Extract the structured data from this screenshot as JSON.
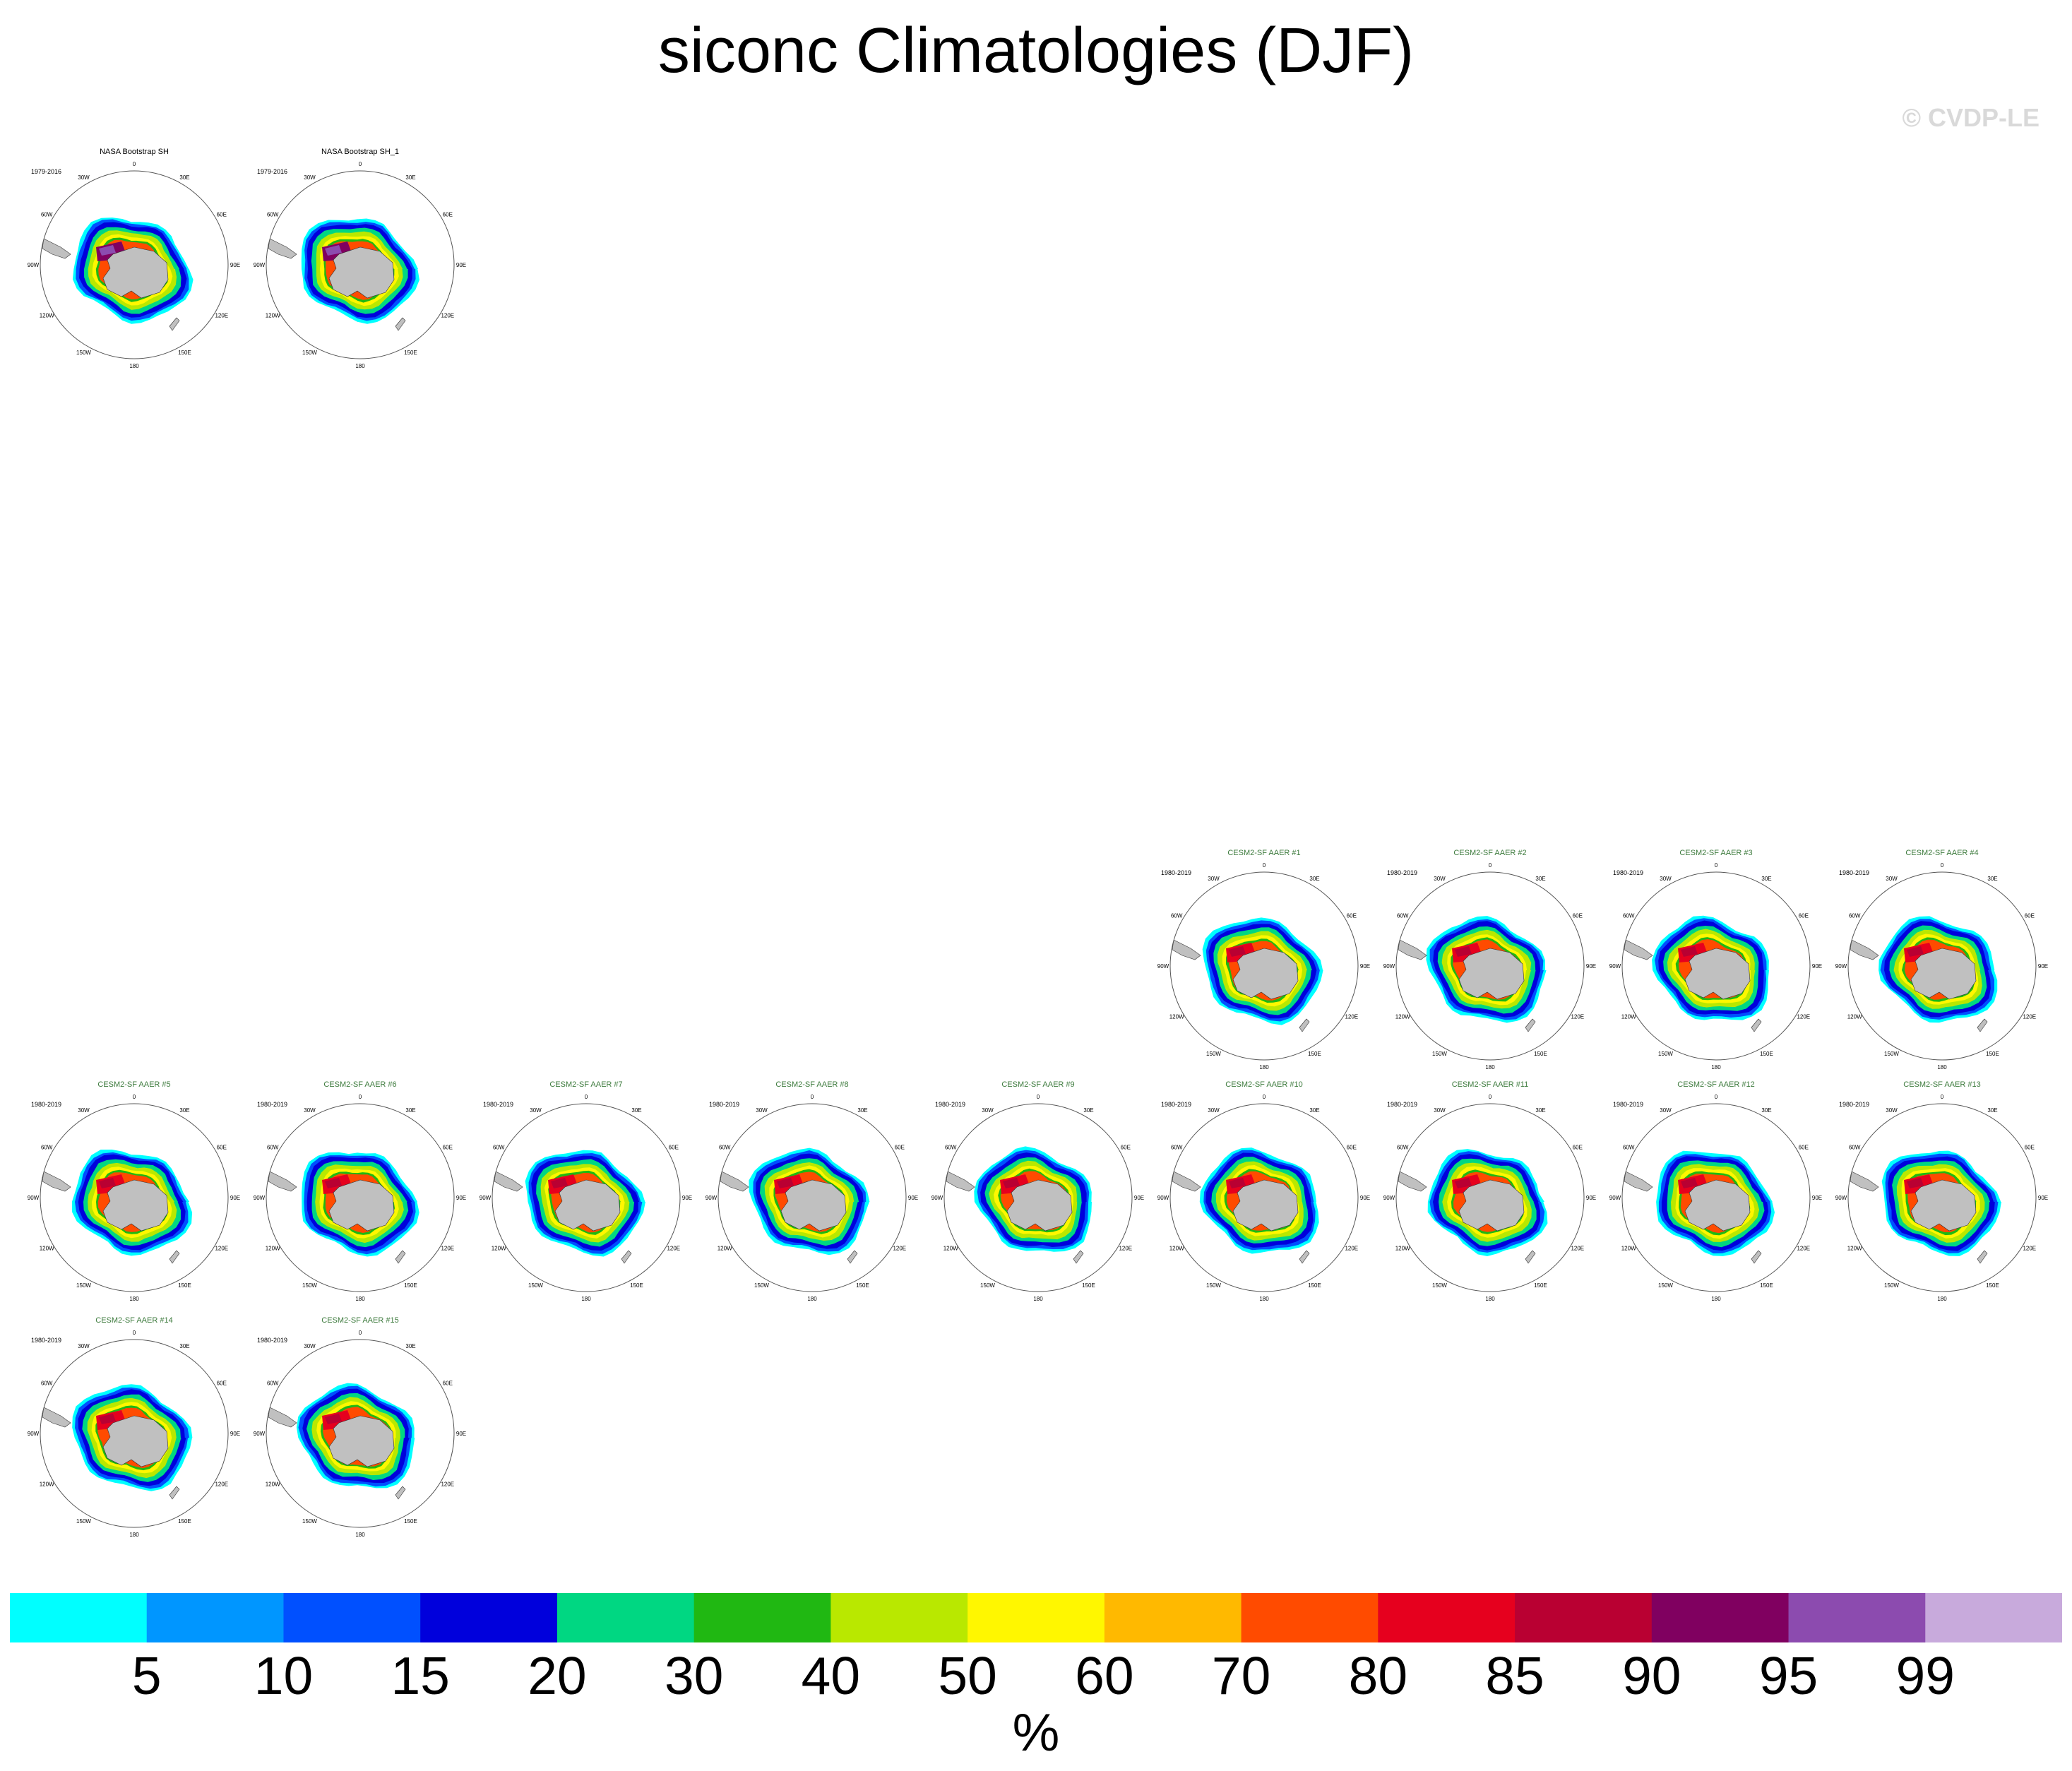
{
  "page": {
    "title": "siconc Climatologies (DJF)",
    "watermark": "© CVDP-LE"
  },
  "chart_data": {
    "type": "heatmap",
    "projection": "south polar stereographic",
    "variable": "siconc",
    "season": "DJF",
    "panels": [
      {
        "title": "NASA Bootstrap SH",
        "years": "1979-2016",
        "kind": "obs"
      },
      {
        "title": "NASA Bootstrap SH_1",
        "years": "1979-2016",
        "kind": "obs"
      },
      {
        "title": "CESM2-SF AAER #1",
        "years": "1980-2019",
        "kind": "model"
      },
      {
        "title": "CESM2-SF AAER #2",
        "years": "1980-2019",
        "kind": "model"
      },
      {
        "title": "CESM2-SF AAER #3",
        "years": "1980-2019",
        "kind": "model"
      },
      {
        "title": "CESM2-SF AAER #4",
        "years": "1980-2019",
        "kind": "model"
      },
      {
        "title": "CESM2-SF AAER #5",
        "years": "1980-2019",
        "kind": "model"
      },
      {
        "title": "CESM2-SF AAER #6",
        "years": "1980-2019",
        "kind": "model"
      },
      {
        "title": "CESM2-SF AAER #7",
        "years": "1980-2019",
        "kind": "model"
      },
      {
        "title": "CESM2-SF AAER #8",
        "years": "1980-2019",
        "kind": "model"
      },
      {
        "title": "CESM2-SF AAER #9",
        "years": "1980-2019",
        "kind": "model"
      },
      {
        "title": "CESM2-SF AAER #10",
        "years": "1980-2019",
        "kind": "model"
      },
      {
        "title": "CESM2-SF AAER #11",
        "years": "1980-2019",
        "kind": "model"
      },
      {
        "title": "CESM2-SF AAER #12",
        "years": "1980-2019",
        "kind": "model"
      },
      {
        "title": "CESM2-SF AAER #13",
        "years": "1980-2019",
        "kind": "model"
      },
      {
        "title": "CESM2-SF AAER #14",
        "years": "1980-2019",
        "kind": "model"
      },
      {
        "title": "CESM2-SF AAER #15",
        "years": "1980-2019",
        "kind": "model"
      }
    ],
    "longitude_labels": [
      "0",
      "30E",
      "60E",
      "90E",
      "120E",
      "150E",
      "180",
      "150W",
      "120W",
      "90W",
      "60W",
      "30W"
    ],
    "colorbar": {
      "units": "%",
      "levels": [
        "5",
        "10",
        "15",
        "20",
        "30",
        "40",
        "50",
        "60",
        "70",
        "80",
        "85",
        "90",
        "95",
        "99"
      ],
      "colors": [
        "#00ffff",
        "#0096ff",
        "#0050ff",
        "#0000dc",
        "#00d782",
        "#20b812",
        "#b9e800",
        "#fff700",
        "#ffb900",
        "#ff4b00",
        "#e6001e",
        "#b90032",
        "#800060",
        "#8c4baf",
        "#c8aadc"
      ]
    },
    "colors": {
      "obs_title": "#000000",
      "model_title": "#3c7a3c",
      "land": "#c0c0c0",
      "land_outline": "#333333"
    }
  }
}
